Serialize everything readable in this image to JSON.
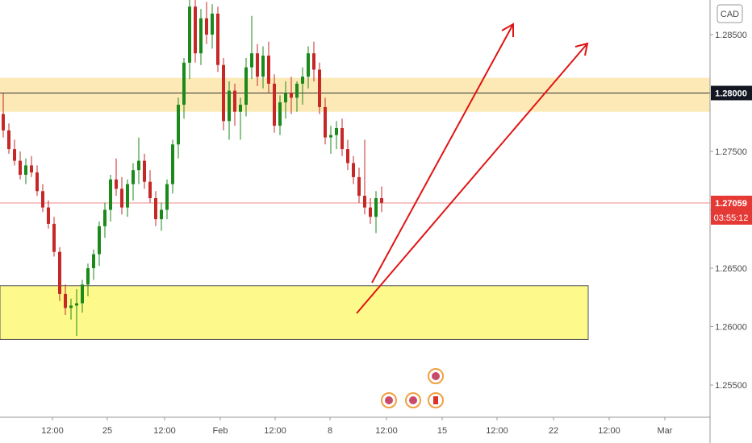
{
  "chart_data": {
    "type": "candlestick",
    "symbol_currency": "CAD",
    "y_ticks": [
      "1.28500",
      "1.28000",
      "1.27500",
      "1.27000",
      "1.26500",
      "1.26000",
      "1.25500"
    ],
    "y_tick_values": [
      1.285,
      1.28,
      1.275,
      1.27,
      1.265,
      1.26,
      1.255
    ],
    "x_ticks": [
      "12:00",
      "25",
      "12:00",
      "Feb",
      "12:00",
      "8",
      "12:00",
      "15",
      "12:00",
      "22",
      "12:00",
      "Mar"
    ],
    "ylim": [
      1.2515,
      1.2895
    ],
    "level_label": "1.28000",
    "last_price": "1.27059",
    "countdown": "03:55:12",
    "colors": {
      "bull": "#1b8a1b",
      "bear": "#c62828",
      "resistance_zone": "#fce9b5",
      "support_zone": "#fdf98a",
      "arrow": "#e01515",
      "last_price_badge": "#e53935"
    },
    "zones": [
      {
        "name": "resistance",
        "from": 1.2784,
        "to": 1.2813
      },
      {
        "name": "support",
        "from": 1.2589,
        "to": 1.2635
      }
    ],
    "candles": [
      [
        1.2782,
        1.28,
        1.2762,
        1.2768
      ],
      [
        1.2768,
        1.2774,
        1.2748,
        1.2752
      ],
      [
        1.2752,
        1.276,
        1.2738,
        1.2742
      ],
      [
        1.2742,
        1.275,
        1.2726,
        1.273
      ],
      [
        1.273,
        1.2744,
        1.2722,
        1.2738
      ],
      [
        1.2738,
        1.2746,
        1.2728,
        1.2732
      ],
      [
        1.2732,
        1.2738,
        1.2712,
        1.2716
      ],
      [
        1.2716,
        1.2722,
        1.2698,
        1.2702
      ],
      [
        1.2702,
        1.2708,
        1.2684,
        1.2688
      ],
      [
        1.2688,
        1.2694,
        1.266,
        1.2664
      ],
      [
        1.2664,
        1.2668,
        1.2622,
        1.2628
      ],
      [
        1.2628,
        1.2636,
        1.261,
        1.2616
      ],
      [
        1.2616,
        1.2624,
        1.2606,
        1.2618
      ],
      [
        1.2618,
        1.2632,
        1.2592,
        1.262
      ],
      [
        1.262,
        1.264,
        1.2612,
        1.2636
      ],
      [
        1.2636,
        1.2654,
        1.2626,
        1.265
      ],
      [
        1.265,
        1.2666,
        1.264,
        1.2662
      ],
      [
        1.2662,
        1.269,
        1.2652,
        1.2686
      ],
      [
        1.2686,
        1.2706,
        1.2676,
        1.27
      ],
      [
        1.27,
        1.273,
        1.269,
        1.2726
      ],
      [
        1.2726,
        1.2744,
        1.2712,
        1.2718
      ],
      [
        1.2718,
        1.2728,
        1.2696,
        1.2702
      ],
      [
        1.2702,
        1.2726,
        1.2694,
        1.2722
      ],
      [
        1.2722,
        1.274,
        1.2708,
        1.2734
      ],
      [
        1.2734,
        1.2762,
        1.2722,
        1.2742
      ],
      [
        1.2742,
        1.2748,
        1.2718,
        1.2724
      ],
      [
        1.2724,
        1.2734,
        1.2706,
        1.271
      ],
      [
        1.271,
        1.2716,
        1.2686,
        1.2692
      ],
      [
        1.2692,
        1.2706,
        1.2682,
        1.27
      ],
      [
        1.27,
        1.2726,
        1.2692,
        1.2722
      ],
      [
        1.2722,
        1.276,
        1.2714,
        1.2756
      ],
      [
        1.2756,
        1.2796,
        1.2744,
        1.279
      ],
      [
        1.279,
        1.283,
        1.2778,
        1.2826
      ],
      [
        1.2826,
        1.2888,
        1.2812,
        1.2874
      ],
      [
        1.2874,
        1.2882,
        1.2826,
        1.2834
      ],
      [
        1.2834,
        1.2872,
        1.2824,
        1.2864
      ],
      [
        1.2864,
        1.2878,
        1.2842,
        1.285
      ],
      [
        1.285,
        1.2876,
        1.2838,
        1.2868
      ],
      [
        1.2868,
        1.2874,
        1.2818,
        1.2824
      ],
      [
        1.2824,
        1.283,
        1.2768,
        1.2776
      ],
      [
        1.2776,
        1.281,
        1.276,
        1.2802
      ],
      [
        1.2802,
        1.2808,
        1.2772,
        1.2784
      ],
      [
        1.2784,
        1.2796,
        1.276,
        1.279
      ],
      [
        1.279,
        1.283,
        1.278,
        1.2822
      ],
      [
        1.2822,
        1.2866,
        1.2812,
        1.2834
      ],
      [
        1.2834,
        1.2842,
        1.2806,
        1.2814
      ],
      [
        1.2814,
        1.284,
        1.2804,
        1.2832
      ],
      [
        1.2832,
        1.2844,
        1.28,
        1.2808
      ],
      [
        1.2808,
        1.2816,
        1.2766,
        1.2772
      ],
      [
        1.2772,
        1.2798,
        1.2764,
        1.2792
      ],
      [
        1.2792,
        1.281,
        1.2778,
        1.28
      ],
      [
        1.28,
        1.2814,
        1.2782,
        1.2796
      ],
      [
        1.2796,
        1.281,
        1.2784,
        1.2808
      ],
      [
        1.2808,
        1.2822,
        1.279,
        1.2814
      ],
      [
        1.2814,
        1.284,
        1.2804,
        1.2834
      ],
      [
        1.2834,
        1.2844,
        1.281,
        1.282
      ],
      [
        1.282,
        1.2826,
        1.2782,
        1.2788
      ],
      [
        1.2788,
        1.2796,
        1.2756,
        1.2762
      ],
      [
        1.2762,
        1.2772,
        1.2748,
        1.2764
      ],
      [
        1.2764,
        1.2776,
        1.2752,
        1.277
      ],
      [
        1.277,
        1.2778,
        1.2746,
        1.2752
      ],
      [
        1.2752,
        1.276,
        1.2734,
        1.274
      ],
      [
        1.274,
        1.2746,
        1.2722,
        1.2728
      ],
      [
        1.2728,
        1.2736,
        1.2706,
        1.2712
      ],
      [
        1.2712,
        1.276,
        1.2696,
        1.2702
      ],
      [
        1.2702,
        1.271,
        1.2688,
        1.2694
      ],
      [
        1.2694,
        1.2716,
        1.268,
        1.271
      ],
      [
        1.271,
        1.272,
        1.2698,
        1.2706
      ]
    ]
  }
}
